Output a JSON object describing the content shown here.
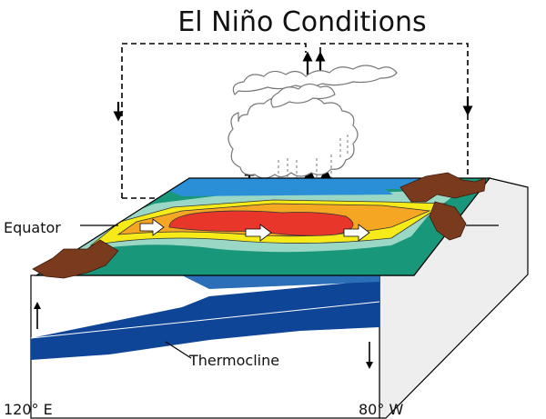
{
  "diagram": {
    "title": "El Niño Conditions",
    "labels": {
      "equator": "Equator",
      "thermocline": "Thermocline",
      "left_longitude": "120° E",
      "right_longitude": "80° W"
    },
    "colors": {
      "cloud_stroke": "#888888",
      "ocean_deep": "#0e4597",
      "ocean_surface_blue": "#2a8fd6",
      "band_teal": "#19977a",
      "band_light_teal": "#9ad7c4",
      "band_yellow": "#f7ea19",
      "band_orange": "#f5a623",
      "band_red": "#e8372a",
      "land_brown": "#7a3a1e",
      "box_side": "#eeeeee"
    }
  }
}
